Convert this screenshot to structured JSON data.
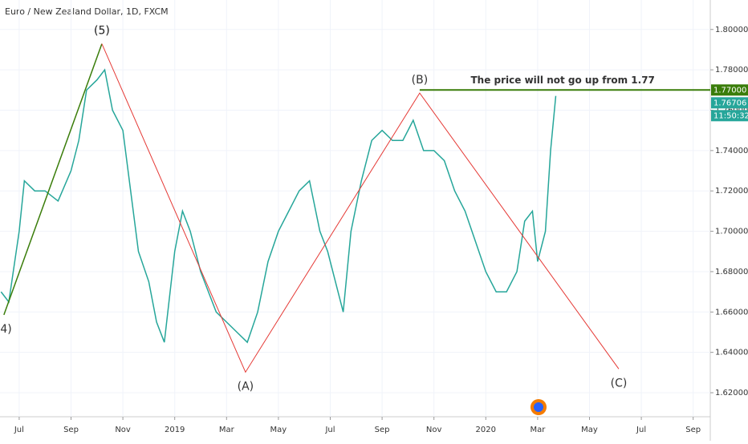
{
  "chart_data": {
    "type": "line",
    "title": "Euro / New Zealand Dollar, 1D, FXCM",
    "xlim": [
      5.26,
      32.66
    ],
    "ylim": [
      1.6081,
      1.8146
    ],
    "xticks": [
      {
        "value": 6,
        "label": "Jul"
      },
      {
        "value": 8,
        "label": "Sep"
      },
      {
        "value": 10,
        "label": "Nov"
      },
      {
        "value": 12,
        "label": "2019"
      },
      {
        "value": 14,
        "label": "Mar"
      },
      {
        "value": 16,
        "label": "May"
      },
      {
        "value": 18,
        "label": "Jul"
      },
      {
        "value": 20,
        "label": "Sep"
      },
      {
        "value": 22,
        "label": "Nov"
      },
      {
        "value": 24,
        "label": "2020"
      },
      {
        "value": 26,
        "label": "Mar"
      },
      {
        "value": 28,
        "label": "May"
      },
      {
        "value": 30,
        "label": "Jul"
      },
      {
        "value": 32,
        "label": "Sep"
      }
    ],
    "yticks": [
      {
        "value": 1.8,
        "label": "1.80000"
      },
      {
        "value": 1.78,
        "label": "1.78000"
      },
      {
        "value": 1.76,
        "label": "1.76000"
      },
      {
        "value": 1.74,
        "label": "1.74000"
      },
      {
        "value": 1.72,
        "label": "1.72000"
      },
      {
        "value": 1.7,
        "label": "1.70000"
      },
      {
        "value": 1.68,
        "label": "1.68000"
      },
      {
        "value": 1.66,
        "label": "1.66000"
      },
      {
        "value": 1.64,
        "label": "1.64000"
      },
      {
        "value": 1.62,
        "label": "1.62000"
      }
    ],
    "grid": true,
    "series": [
      {
        "color": "#26a69a",
        "width": 1.5,
        "x": [
          5.3,
          5.6,
          6.0,
          6.2,
          6.6,
          7.0,
          7.5,
          8.0,
          8.3,
          8.6,
          9.0,
          9.3,
          9.6,
          10.0,
          10.3,
          10.6,
          11.0,
          11.3,
          11.6,
          12.0,
          12.3,
          12.6,
          13.0,
          13.3,
          13.6,
          14.0,
          14.4,
          14.8,
          15.2,
          15.6,
          16.0,
          16.4,
          16.8,
          17.2,
          17.6,
          17.9,
          18.2,
          18.5,
          18.8,
          19.2,
          19.6,
          20.0,
          20.4,
          20.8,
          21.2,
          21.6,
          22.0,
          22.4,
          22.8,
          23.2,
          23.6,
          24.0,
          24.4,
          24.8,
          25.2,
          25.5,
          25.8,
          26.0,
          26.3,
          26.5,
          26.7
        ],
        "values": [
          1.67,
          1.665,
          1.7,
          1.725,
          1.72,
          1.72,
          1.715,
          1.73,
          1.745,
          1.77,
          1.775,
          1.78,
          1.76,
          1.75,
          1.72,
          1.69,
          1.675,
          1.655,
          1.645,
          1.69,
          1.71,
          1.7,
          1.68,
          1.67,
          1.66,
          1.655,
          1.65,
          1.645,
          1.66,
          1.685,
          1.7,
          1.71,
          1.72,
          1.725,
          1.7,
          1.69,
          1.675,
          1.66,
          1.7,
          1.725,
          1.745,
          1.75,
          1.745,
          1.745,
          1.755,
          1.74,
          1.74,
          1.735,
          1.72,
          1.71,
          1.695,
          1.68,
          1.67,
          1.67,
          1.68,
          1.705,
          1.71,
          1.685,
          1.7,
          1.74,
          1.76706
        ]
      },
      {
        "color": "#3a7d0a",
        "width": 1.5,
        "x": [
          5.41,
          9.19
        ],
        "values": [
          1.6586,
          1.7929
        ],
        "labels": [
          "(4)",
          "(5)"
        ]
      },
      {
        "color": "#e53935",
        "width": 1,
        "x": [
          9.19,
          14.73,
          21.45,
          29.13
        ],
        "values": [
          1.7929,
          1.6302,
          1.7685,
          1.6318
        ],
        "labels": [
          "(5)",
          "(A)",
          "(B)",
          "(C)"
        ]
      }
    ],
    "level": {
      "value": 1.77,
      "x_start": 21.45,
      "color": "#3a7d0a"
    },
    "annotation": {
      "text": "The price will not go up from 1.77",
      "x": 26.97,
      "y": 1.7747,
      "color": "#e91e63"
    },
    "price_tags": [
      {
        "label": "1.77000",
        "value": 1.77,
        "color": "#3a7d0a"
      },
      {
        "label": "1.76706",
        "value": 1.76706,
        "color": "#26a69a"
      }
    ],
    "countdown": "11:50:32"
  }
}
